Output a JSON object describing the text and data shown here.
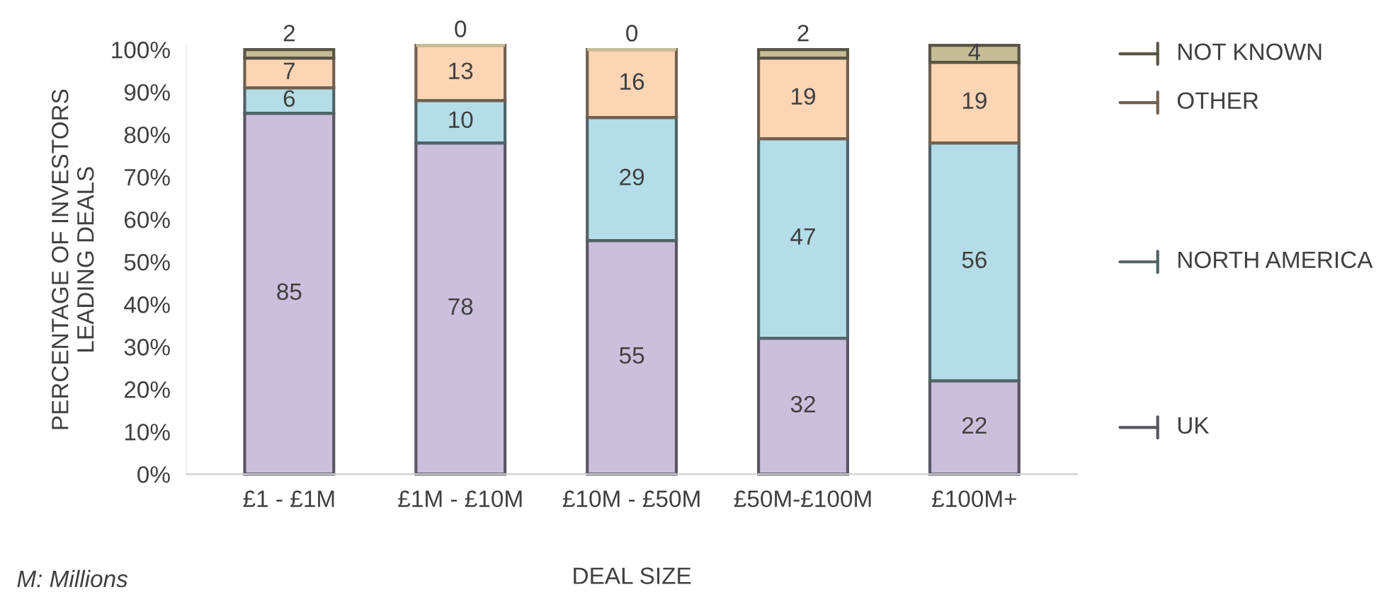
{
  "chart_data": {
    "type": "bar",
    "stacked": true,
    "xlabel": "DEAL SIZE",
    "ylabel": "PERCENTAGE OF INVESTORS\nLEADING DEALS",
    "categories": [
      "£1 - £1M",
      "£1M - £10M",
      "£10M - £50M",
      "£50M-£100M",
      "£100M+"
    ],
    "series": [
      {
        "name": "UK",
        "color": "#cbc0dc",
        "values": [
          85,
          78,
          55,
          32,
          22
        ]
      },
      {
        "name": "NORTH AMERICA",
        "color": "#b5dde8",
        "values": [
          6,
          10,
          29,
          47,
          56
        ]
      },
      {
        "name": "OTHER",
        "color": "#fcd5b4",
        "values": [
          7,
          13,
          16,
          19,
          19
        ]
      },
      {
        "name": "NOT KNOWN",
        "color": "#c4bd97",
        "values": [
          2,
          0,
          0,
          2,
          4
        ]
      }
    ],
    "ylim": [
      0,
      101
    ],
    "yticks": [
      {
        "value": 0,
        "label": "0%"
      },
      {
        "value": 10,
        "label": "10%"
      },
      {
        "value": 20,
        "label": "20%"
      },
      {
        "value": 30,
        "label": "30%"
      },
      {
        "value": 40,
        "label": "40%"
      },
      {
        "value": 50,
        "label": "50%"
      },
      {
        "value": 60,
        "label": "60%"
      },
      {
        "value": 70,
        "label": "70%"
      },
      {
        "value": 80,
        "label": "80%"
      },
      {
        "value": 90,
        "label": "90%"
      },
      {
        "value": 100,
        "label": "100%"
      }
    ],
    "data_labels": true,
    "grid": false,
    "legend": "right",
    "annotations": [
      "M: Millions"
    ]
  }
}
